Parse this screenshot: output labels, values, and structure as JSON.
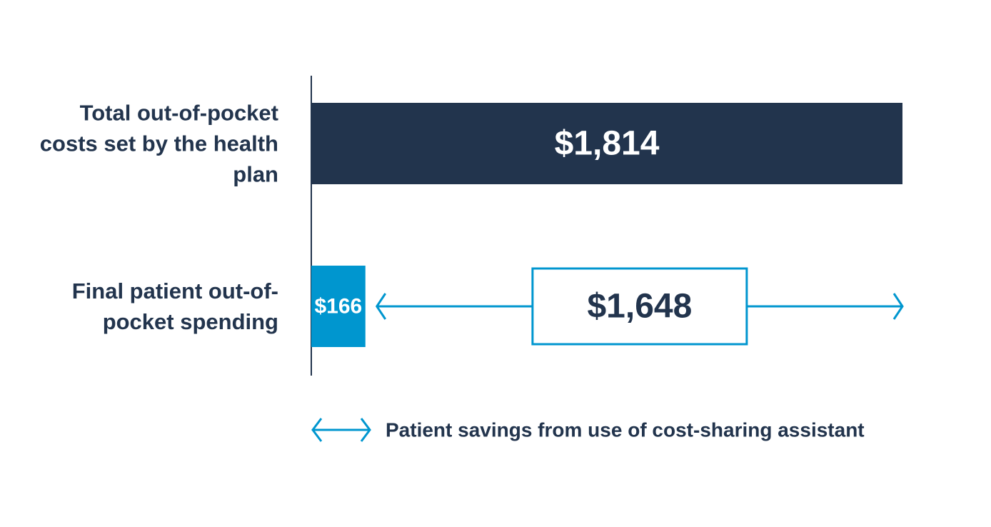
{
  "chart_data": {
    "type": "bar",
    "orientation": "horizontal",
    "categories": [
      "Total out-of-pocket costs set by the health plan",
      "Final patient out-of-pocket spending"
    ],
    "values": [
      1814,
      166
    ],
    "value_labels": [
      "$1,814",
      "$166"
    ],
    "colors": [
      "#22344d",
      "#0096cf"
    ],
    "xlim": [
      0,
      1814
    ],
    "savings": {
      "value": 1648,
      "value_label": "$1,648",
      "color": "#0096cf",
      "legend": "Patient savings from use of cost-sharing assistant"
    }
  }
}
